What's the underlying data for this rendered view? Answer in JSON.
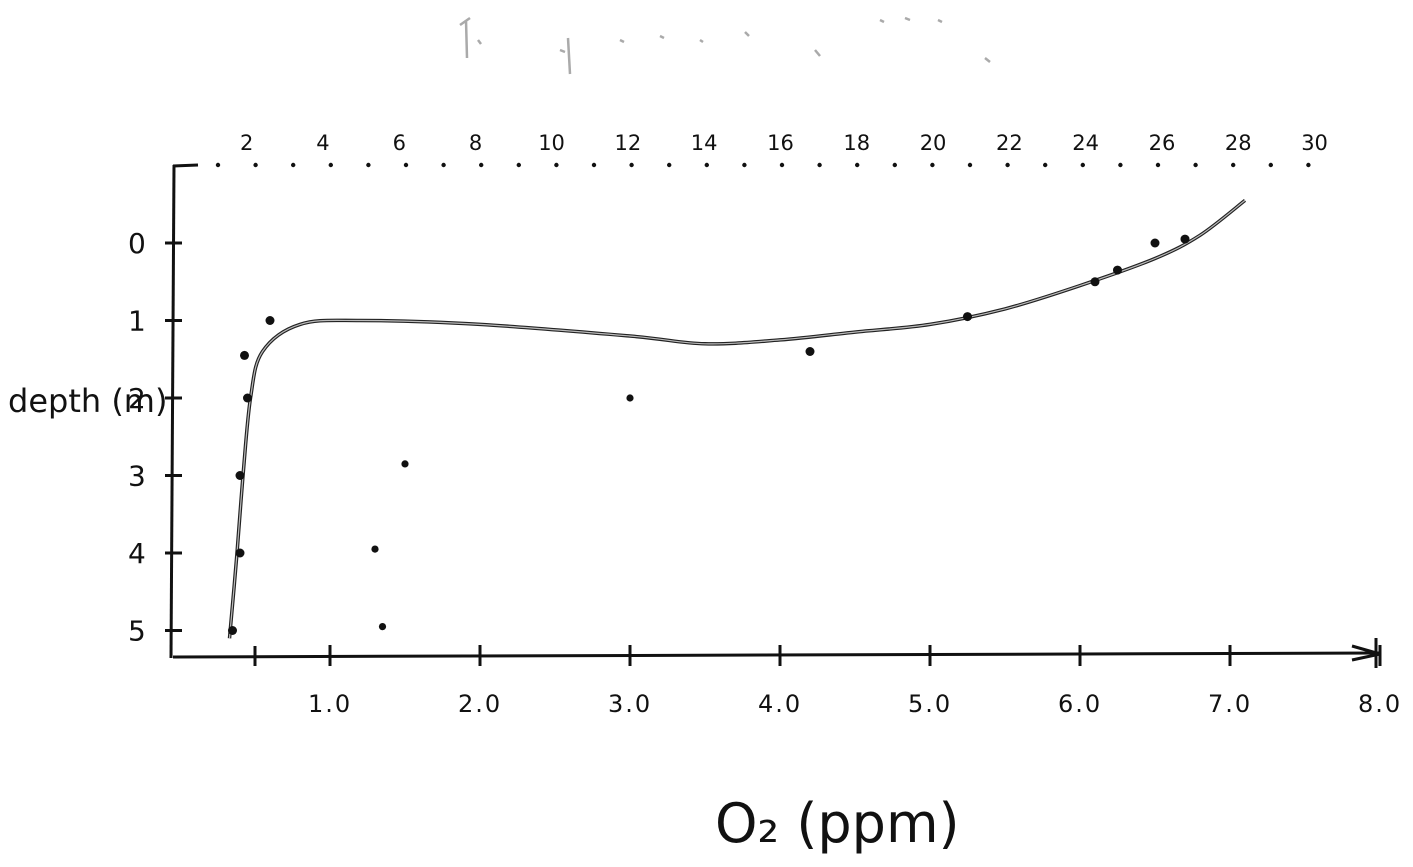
{
  "chart_data": {
    "type": "scatter",
    "title": "",
    "xlabel": "O₂ (ppm)",
    "ylabel": "depth (m)",
    "x_ticks": [
      "1.0",
      "2.0",
      "3.0",
      "4.0",
      "5.0",
      "6.0",
      "7.0",
      "8.0"
    ],
    "y_ticks": [
      "0",
      "1",
      "2",
      "3",
      "4",
      "5"
    ],
    "top_ticks": [
      "2",
      "4",
      "6",
      "8",
      "10",
      "12",
      "14",
      "16",
      "18",
      "20",
      "22",
      "24",
      "26",
      "28",
      "30"
    ],
    "xlim": [
      0,
      8
    ],
    "ylim": [
      -1,
      5.3
    ],
    "y_inverted": true,
    "grid": false,
    "series": [
      {
        "kind": "points",
        "points": [
          {
            "x": 0.35,
            "y": 5.0
          },
          {
            "x": 0.4,
            "y": 4.0
          },
          {
            "x": 0.4,
            "y": 3.0
          },
          {
            "x": 0.45,
            "y": 2.0
          },
          {
            "x": 0.43,
            "y": 1.45
          },
          {
            "x": 0.6,
            "y": 1.0
          },
          {
            "x": 4.2,
            "y": 1.4
          },
          {
            "x": 5.25,
            "y": 0.95
          },
          {
            "x": 6.1,
            "y": 0.5
          },
          {
            "x": 6.25,
            "y": 0.35
          },
          {
            "x": 6.5,
            "y": 0.0
          },
          {
            "x": 6.7,
            "y": -0.05
          }
        ]
      },
      {
        "kind": "points",
        "points": [
          {
            "x": 1.35,
            "y": 4.95
          },
          {
            "x": 1.3,
            "y": 3.95
          },
          {
            "x": 1.5,
            "y": 2.85
          },
          {
            "x": 3.0,
            "y": 2.0
          }
        ]
      },
      {
        "kind": "fitted-curve",
        "points": [
          {
            "x": 0.33,
            "y": 5.1
          },
          {
            "x": 0.38,
            "y": 4.0
          },
          {
            "x": 0.42,
            "y": 3.0
          },
          {
            "x": 0.47,
            "y": 2.0
          },
          {
            "x": 0.55,
            "y": 1.4
          },
          {
            "x": 0.8,
            "y": 1.05
          },
          {
            "x": 1.2,
            "y": 1.0
          },
          {
            "x": 2.0,
            "y": 1.05
          },
          {
            "x": 3.0,
            "y": 1.2
          },
          {
            "x": 3.5,
            "y": 1.3
          },
          {
            "x": 4.0,
            "y": 1.25
          },
          {
            "x": 4.5,
            "y": 1.15
          },
          {
            "x": 5.0,
            "y": 1.05
          },
          {
            "x": 5.5,
            "y": 0.85
          },
          {
            "x": 6.0,
            "y": 0.55
          },
          {
            "x": 6.5,
            "y": 0.2
          },
          {
            "x": 6.8,
            "y": -0.1
          },
          {
            "x": 7.1,
            "y": -0.55
          }
        ]
      }
    ]
  }
}
